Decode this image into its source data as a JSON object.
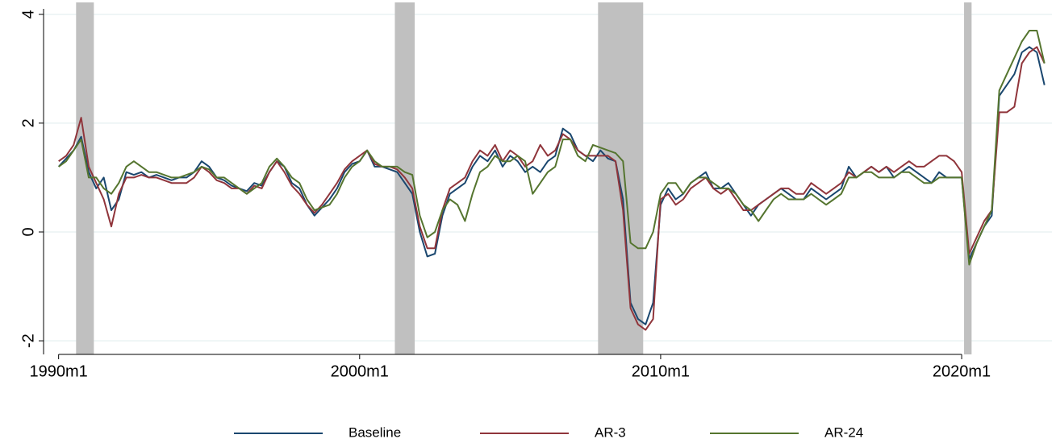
{
  "chart_data": {
    "type": "line",
    "x": [
      1990,
      1990.25,
      1990.5,
      1990.75,
      1991,
      1991.25,
      1991.5,
      1991.75,
      1992,
      1992.25,
      1992.5,
      1992.75,
      1993,
      1993.25,
      1993.5,
      1993.75,
      1994,
      1994.25,
      1994.5,
      1994.75,
      1995,
      1995.25,
      1995.5,
      1995.75,
      1996,
      1996.25,
      1996.5,
      1996.75,
      1997,
      1997.25,
      1997.5,
      1997.75,
      1998,
      1998.25,
      1998.5,
      1998.75,
      1999,
      1999.25,
      1999.5,
      1999.75,
      2000,
      2000.25,
      2000.5,
      2000.75,
      2001,
      2001.25,
      2001.5,
      2001.75,
      2002,
      2002.25,
      2002.5,
      2002.75,
      2003,
      2003.25,
      2003.5,
      2003.75,
      2004,
      2004.25,
      2004.5,
      2004.75,
      2005,
      2005.25,
      2005.5,
      2005.75,
      2006,
      2006.25,
      2006.5,
      2006.75,
      2007,
      2007.25,
      2007.5,
      2007.75,
      2008,
      2008.25,
      2008.5,
      2008.75,
      2009,
      2009.25,
      2009.5,
      2009.75,
      2010,
      2010.25,
      2010.5,
      2010.75,
      2011,
      2011.25,
      2011.5,
      2011.75,
      2012,
      2012.25,
      2012.5,
      2012.75,
      2013,
      2013.25,
      2013.5,
      2013.75,
      2014,
      2014.25,
      2014.5,
      2014.75,
      2015,
      2015.25,
      2015.5,
      2015.75,
      2016,
      2016.25,
      2016.5,
      2016.75,
      2017,
      2017.25,
      2017.5,
      2017.75,
      2018,
      2018.25,
      2018.5,
      2018.75,
      2019,
      2019.25,
      2019.5,
      2019.75,
      2020,
      2020.25,
      2020.5,
      2020.75,
      2021,
      2021.25,
      2021.5,
      2021.75,
      2022,
      2022.25,
      2022.5,
      2022.75
    ],
    "series": [
      {
        "name": "Baseline",
        "color": "#1a476f",
        "values": [
          1.2,
          1.35,
          1.5,
          1.75,
          1.1,
          0.8,
          1.0,
          0.4,
          0.6,
          1.1,
          1.05,
          1.1,
          1.0,
          1.05,
          1.0,
          0.95,
          1.0,
          1.0,
          1.1,
          1.3,
          1.2,
          1.0,
          0.95,
          0.85,
          0.8,
          0.75,
          0.9,
          0.85,
          1.1,
          1.3,
          1.2,
          0.9,
          0.8,
          0.5,
          0.3,
          0.45,
          0.6,
          0.8,
          1.1,
          1.25,
          1.3,
          1.5,
          1.2,
          1.2,
          1.15,
          1.1,
          0.9,
          0.7,
          0.0,
          -0.45,
          -0.4,
          0.3,
          0.7,
          0.8,
          0.9,
          1.2,
          1.4,
          1.3,
          1.5,
          1.2,
          1.4,
          1.3,
          1.1,
          1.2,
          1.1,
          1.3,
          1.4,
          1.9,
          1.8,
          1.5,
          1.4,
          1.3,
          1.5,
          1.35,
          1.3,
          0.6,
          -1.3,
          -1.6,
          -1.7,
          -1.3,
          0.5,
          0.8,
          0.6,
          0.7,
          0.9,
          1.0,
          1.1,
          0.8,
          0.8,
          0.9,
          0.7,
          0.5,
          0.3,
          0.5,
          0.6,
          0.7,
          0.8,
          0.7,
          0.6,
          0.6,
          0.8,
          0.7,
          0.6,
          0.7,
          0.8,
          1.2,
          1.0,
          1.1,
          1.2,
          1.1,
          1.2,
          1.0,
          1.1,
          1.2,
          1.1,
          1.0,
          0.9,
          1.1,
          1.0,
          1.0,
          1.0,
          -0.5,
          -0.2,
          0.1,
          0.3,
          2.5,
          2.7,
          2.9,
          3.3,
          3.4,
          3.3,
          2.7
        ]
      },
      {
        "name": "AR-3",
        "color": "#90353b",
        "values": [
          1.3,
          1.4,
          1.6,
          2.1,
          1.2,
          0.9,
          0.6,
          0.1,
          0.7,
          1.0,
          1.0,
          1.05,
          1.0,
          1.0,
          0.95,
          0.9,
          0.9,
          0.9,
          1.0,
          1.2,
          1.1,
          0.95,
          0.9,
          0.8,
          0.8,
          0.7,
          0.85,
          0.8,
          1.1,
          1.3,
          1.1,
          0.85,
          0.7,
          0.5,
          0.35,
          0.5,
          0.7,
          0.9,
          1.15,
          1.3,
          1.4,
          1.5,
          1.25,
          1.2,
          1.2,
          1.15,
          1.0,
          0.8,
          0.1,
          -0.3,
          -0.3,
          0.4,
          0.8,
          0.9,
          1.0,
          1.3,
          1.5,
          1.4,
          1.6,
          1.3,
          1.5,
          1.4,
          1.2,
          1.3,
          1.6,
          1.4,
          1.5,
          1.8,
          1.7,
          1.5,
          1.4,
          1.4,
          1.4,
          1.4,
          1.3,
          0.4,
          -1.4,
          -1.7,
          -1.8,
          -1.6,
          0.6,
          0.7,
          0.5,
          0.6,
          0.8,
          0.9,
          1.0,
          0.8,
          0.7,
          0.8,
          0.6,
          0.4,
          0.4,
          0.5,
          0.6,
          0.7,
          0.8,
          0.8,
          0.7,
          0.7,
          0.9,
          0.8,
          0.7,
          0.8,
          0.9,
          1.1,
          1.0,
          1.1,
          1.2,
          1.1,
          1.2,
          1.1,
          1.2,
          1.3,
          1.2,
          1.2,
          1.3,
          1.4,
          1.4,
          1.3,
          1.1,
          -0.4,
          -0.1,
          0.2,
          0.4,
          2.2,
          2.2,
          2.3,
          3.1,
          3.3,
          3.4,
          3.1
        ]
      },
      {
        "name": "AR-24",
        "color": "#55752f",
        "values": [
          1.2,
          1.3,
          1.5,
          1.7,
          1.0,
          1.0,
          0.8,
          0.7,
          0.9,
          1.2,
          1.3,
          1.2,
          1.1,
          1.1,
          1.05,
          1.0,
          1.0,
          1.05,
          1.1,
          1.2,
          1.15,
          1.0,
          1.0,
          0.9,
          0.8,
          0.7,
          0.8,
          0.9,
          1.2,
          1.35,
          1.2,
          1.0,
          0.9,
          0.6,
          0.4,
          0.45,
          0.5,
          0.7,
          1.0,
          1.2,
          1.3,
          1.5,
          1.3,
          1.2,
          1.2,
          1.2,
          1.1,
          1.05,
          0.3,
          -0.1,
          0.0,
          0.4,
          0.6,
          0.5,
          0.2,
          0.7,
          1.1,
          1.2,
          1.4,
          1.3,
          1.3,
          1.4,
          1.3,
          0.7,
          0.9,
          1.1,
          1.2,
          1.7,
          1.7,
          1.4,
          1.3,
          1.6,
          1.55,
          1.5,
          1.45,
          1.3,
          -0.2,
          -0.3,
          -0.3,
          0.0,
          0.7,
          0.9,
          0.9,
          0.7,
          0.9,
          1.0,
          1.0,
          0.9,
          0.8,
          0.8,
          0.7,
          0.5,
          0.4,
          0.2,
          0.4,
          0.6,
          0.7,
          0.6,
          0.6,
          0.6,
          0.7,
          0.6,
          0.5,
          0.6,
          0.7,
          1.0,
          1.0,
          1.1,
          1.1,
          1.0,
          1.0,
          1.0,
          1.1,
          1.1,
          1.0,
          0.9,
          0.9,
          1.0,
          1.0,
          1.0,
          1.0,
          -0.6,
          -0.2,
          0.1,
          0.4,
          2.6,
          2.9,
          3.2,
          3.5,
          3.7,
          3.7,
          3.1
        ]
      }
    ],
    "recessions": [
      [
        1990.58,
        1991.17
      ],
      [
        2001.17,
        2001.83
      ],
      [
        2007.92,
        2009.42
      ],
      [
        2020.08,
        2020.33
      ]
    ],
    "recession_color": "#c0c0c0",
    "xlim": [
      1989.5,
      2023.0
    ],
    "xticks": [
      {
        "value": 1990,
        "label": "1990m1"
      },
      {
        "value": 2000,
        "label": "2000m1"
      },
      {
        "value": 2010,
        "label": "2010m1"
      },
      {
        "value": 2020,
        "label": "2020m1"
      }
    ],
    "ylim": [
      -2.25,
      4.1
    ],
    "yticks": [
      -2,
      0,
      2,
      4
    ],
    "grid": true,
    "legend": "bottom"
  }
}
